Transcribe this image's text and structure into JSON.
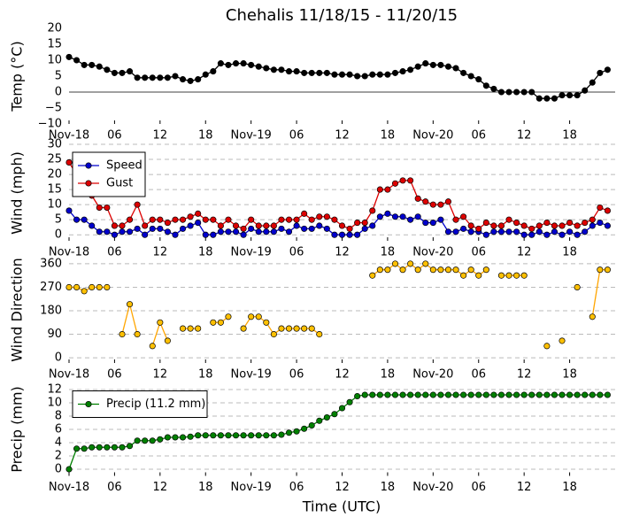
{
  "chart_data": [
    {
      "type": "line",
      "title": "Chehalis 11/18/15 - 11/20/15",
      "ylabel": "Temp (°C)",
      "x": [
        0,
        1,
        2,
        3,
        4,
        5,
        6,
        7,
        8,
        9,
        10,
        11,
        12,
        13,
        14,
        15,
        16,
        17,
        18,
        19,
        20,
        21,
        22,
        23,
        24,
        25,
        26,
        27,
        28,
        29,
        30,
        31,
        32,
        33,
        34,
        35,
        36,
        37,
        38,
        39,
        40,
        41,
        42,
        43,
        44,
        45,
        46,
        47,
        48,
        49,
        50,
        51,
        52,
        53,
        54,
        55,
        56,
        57,
        58,
        59,
        60,
        61,
        62,
        63,
        64,
        65,
        66,
        67,
        68,
        69,
        70,
        71
      ],
      "series": [
        {
          "name": "Temp",
          "color": "#000000",
          "values": [
            11,
            10,
            8.5,
            8.5,
            8,
            7,
            6,
            6,
            6.5,
            4.5,
            4.5,
            4.5,
            4.5,
            4.5,
            5,
            4,
            3.5,
            4,
            5.5,
            6.5,
            9,
            8.5,
            9,
            9,
            8.5,
            8,
            7.5,
            7,
            7,
            6.5,
            6.5,
            6,
            6,
            6,
            6,
            5.5,
            5.5,
            5.5,
            5,
            5,
            5.5,
            5.5,
            5.5,
            6,
            6.5,
            7,
            8,
            9,
            8.5,
            8.5,
            8,
            7.5,
            6,
            5,
            4,
            2,
            1,
            0,
            0,
            0,
            0,
            0,
            -2,
            -2,
            -2,
            -1,
            -1,
            -1,
            0.5,
            3,
            6,
            7
          ]
        }
      ],
      "xlim": [
        0,
        72
      ],
      "xticks": [
        {
          "value": 0,
          "label": "Nov-18"
        },
        {
          "value": 6,
          "label": "06"
        },
        12,
        18,
        {
          "value": 24,
          "label": "Nov-19"
        },
        {
          "value": 30,
          "label": "06"
        },
        {
          "value": 36,
          "label": "12"
        },
        {
          "value": 42,
          "label": "18"
        },
        {
          "value": 48,
          "label": "Nov-20"
        },
        {
          "value": 54,
          "label": "06"
        },
        {
          "value": 60,
          "label": "12"
        },
        {
          "value": 66,
          "label": "18"
        }
      ],
      "ylim": [
        -10,
        20
      ],
      "yticks": [
        {
          "value": -10,
          "label": "−10"
        },
        {
          "value": -5,
          "label": "−5"
        },
        0,
        5,
        10,
        15,
        20
      ],
      "axhline": 0,
      "grid": false
    },
    {
      "type": "line",
      "ylabel": "Wind (mph)",
      "legend": "upper left",
      "x": [
        0,
        1,
        2,
        3,
        4,
        5,
        6,
        7,
        8,
        9,
        10,
        11,
        12,
        13,
        14,
        15,
        16,
        17,
        18,
        19,
        20,
        21,
        22,
        23,
        24,
        25,
        26,
        27,
        28,
        29,
        30,
        31,
        32,
        33,
        34,
        35,
        36,
        37,
        38,
        39,
        40,
        41,
        42,
        43,
        44,
        45,
        46,
        47,
        48,
        49,
        50,
        51,
        52,
        53,
        54,
        55,
        56,
        57,
        58,
        59,
        60,
        61,
        62,
        63,
        64,
        65,
        66,
        67,
        68,
        69,
        70,
        71
      ],
      "series": [
        {
          "name": "Speed",
          "color": "#0000cc",
          "values": [
            8,
            5,
            5,
            3,
            1,
            1,
            0,
            1,
            1,
            2,
            0,
            2,
            2,
            1,
            0,
            2,
            3,
            4,
            0,
            0,
            1,
            1,
            1,
            0,
            2,
            1,
            1,
            1,
            2,
            1,
            3,
            2,
            2,
            3,
            2,
            0,
            0,
            0,
            0,
            2,
            3,
            6,
            7,
            6,
            6,
            5,
            6,
            4,
            4,
            5,
            1,
            1,
            2,
            1,
            1,
            0,
            1,
            1,
            1,
            1,
            0,
            0,
            1,
            0,
            1,
            0,
            1,
            0,
            1,
            3,
            4,
            3
          ]
        },
        {
          "name": "Gust",
          "color": "#dd0000",
          "values": [
            24,
            20,
            19,
            13,
            9,
            9,
            3,
            3,
            5,
            10,
            3,
            5,
            5,
            4,
            5,
            5,
            6,
            7,
            5,
            5,
            3,
            5,
            3,
            2,
            5,
            3,
            3,
            3,
            5,
            5,
            5,
            7,
            5,
            6,
            6,
            5,
            3,
            2,
            4,
            4,
            8,
            15,
            15,
            17,
            18,
            18,
            12,
            11,
            10,
            10,
            11,
            5,
            6,
            3,
            2,
            4,
            3,
            3,
            5,
            4,
            3,
            2,
            3,
            4,
            3,
            3,
            4,
            3,
            4,
            5,
            9,
            8
          ]
        }
      ],
      "xlim": [
        0,
        72
      ],
      "xticks": [
        {
          "value": 0,
          "label": "Nov-18"
        },
        {
          "value": 6,
          "label": "06"
        },
        12,
        18,
        {
          "value": 24,
          "label": "Nov-19"
        },
        {
          "value": 30,
          "label": "06"
        },
        {
          "value": 36,
          "label": "12"
        },
        {
          "value": 42,
          "label": "18"
        },
        {
          "value": 48,
          "label": "Nov-20"
        },
        {
          "value": 54,
          "label": "06"
        },
        {
          "value": 60,
          "label": "12"
        },
        {
          "value": 66,
          "label": "18"
        }
      ],
      "ylim": [
        -2,
        30
      ],
      "yticks": [
        0,
        5,
        10,
        15,
        20,
        25,
        30
      ],
      "grid": true
    },
    {
      "type": "line",
      "ylabel": "Wind Direction",
      "x": [
        0,
        1,
        2,
        3,
        4,
        5,
        6,
        7,
        8,
        9,
        10,
        11,
        12,
        13,
        14,
        15,
        16,
        17,
        18,
        19,
        20,
        21,
        22,
        23,
        24,
        25,
        26,
        27,
        28,
        29,
        30,
        31,
        32,
        33,
        34,
        35,
        36,
        37,
        38,
        39,
        40,
        41,
        42,
        43,
        44,
        45,
        46,
        47,
        48,
        49,
        50,
        51,
        52,
        53,
        54,
        55,
        56,
        57,
        58,
        59,
        60,
        61,
        62,
        63,
        64,
        65,
        66,
        67,
        68,
        69,
        70,
        71
      ],
      "series": [
        {
          "name": "Direction",
          "color": "#ffa500",
          "values": [
            270,
            270,
            255,
            270,
            270,
            270,
            null,
            90,
            205,
            90,
            null,
            45,
            135,
            65,
            null,
            112,
            112,
            112,
            null,
            135,
            135,
            157,
            null,
            112,
            157,
            157,
            135,
            90,
            112,
            112,
            112,
            112,
            112,
            90,
            null,
            null,
            null,
            null,
            null,
            null,
            315,
            337,
            337,
            360,
            337,
            360,
            337,
            360,
            337,
            337,
            337,
            337,
            315,
            337,
            315,
            337,
            null,
            315,
            315,
            315,
            315,
            null,
            null,
            45,
            null,
            65,
            null,
            270,
            null,
            157,
            337,
            337
          ]
        }
      ],
      "xlim": [
        0,
        72
      ],
      "xticks": [
        {
          "value": 0,
          "label": "Nov-18"
        },
        {
          "value": 6,
          "label": "06"
        },
        12,
        18,
        {
          "value": 24,
          "label": "Nov-19"
        },
        {
          "value": 30,
          "label": "06"
        },
        {
          "value": 36,
          "label": "12"
        },
        {
          "value": 42,
          "label": "18"
        },
        {
          "value": 48,
          "label": "Nov-20"
        },
        {
          "value": 54,
          "label": "06"
        },
        {
          "value": 60,
          "label": "12"
        },
        {
          "value": 66,
          "label": "18"
        }
      ],
      "ylim": [
        -20,
        380
      ],
      "yticks": [
        0,
        90,
        180,
        270,
        360
      ],
      "grid": true
    },
    {
      "type": "line",
      "ylabel": "Precip (mm)",
      "xlabel": "Time (UTC)",
      "legend": "upper left",
      "x": [
        0,
        1,
        2,
        3,
        4,
        5,
        6,
        7,
        8,
        9,
        10,
        11,
        12,
        13,
        14,
        15,
        16,
        17,
        18,
        19,
        20,
        21,
        22,
        23,
        24,
        25,
        26,
        27,
        28,
        29,
        30,
        31,
        32,
        33,
        34,
        35,
        36,
        37,
        38,
        39,
        40,
        41,
        42,
        43,
        44,
        45,
        46,
        47,
        48,
        49,
        50,
        51,
        52,
        53,
        54,
        55,
        56,
        57,
        58,
        59,
        60,
        61,
        62,
        63,
        64,
        65,
        66,
        67,
        68,
        69,
        70,
        71
      ],
      "series": [
        {
          "name": "Precip (11.2 mm)",
          "color": "#008000",
          "values": [
            0,
            3.1,
            3.1,
            3.3,
            3.3,
            3.3,
            3.3,
            3.3,
            3.5,
            4.3,
            4.3,
            4.3,
            4.5,
            4.8,
            4.8,
            4.8,
            4.9,
            5.1,
            5.1,
            5.1,
            5.1,
            5.1,
            5.1,
            5.1,
            5.1,
            5.1,
            5.1,
            5.1,
            5.2,
            5.5,
            5.7,
            6.1,
            6.6,
            7.3,
            7.8,
            8.3,
            9.2,
            10.1,
            11.0,
            11.2,
            11.2,
            11.2,
            11.2,
            11.2,
            11.2,
            11.2,
            11.2,
            11.2,
            11.2,
            11.2,
            11.2,
            11.2,
            11.2,
            11.2,
            11.2,
            11.2,
            11.2,
            11.2,
            11.2,
            11.2,
            11.2,
            11.2,
            11.2,
            11.2,
            11.2,
            11.2,
            11.2,
            11.2,
            11.2,
            11.2,
            11.2,
            11.2
          ]
        }
      ],
      "xlim": [
        0,
        72
      ],
      "xticks": [
        {
          "value": 0,
          "label": "Nov-18"
        },
        {
          "value": 6,
          "label": "06"
        },
        12,
        18,
        {
          "value": 24,
          "label": "Nov-19"
        },
        {
          "value": 30,
          "label": "06"
        },
        {
          "value": 36,
          "label": "12"
        },
        {
          "value": 42,
          "label": "18"
        },
        {
          "value": 48,
          "label": "Nov-20"
        },
        {
          "value": 54,
          "label": "06"
        },
        {
          "value": 60,
          "label": "12"
        },
        {
          "value": 66,
          "label": "18"
        }
      ],
      "ylim": [
        -1,
        13
      ],
      "yticks": [
        0,
        2,
        4,
        6,
        8,
        10,
        12
      ],
      "grid": true
    }
  ]
}
